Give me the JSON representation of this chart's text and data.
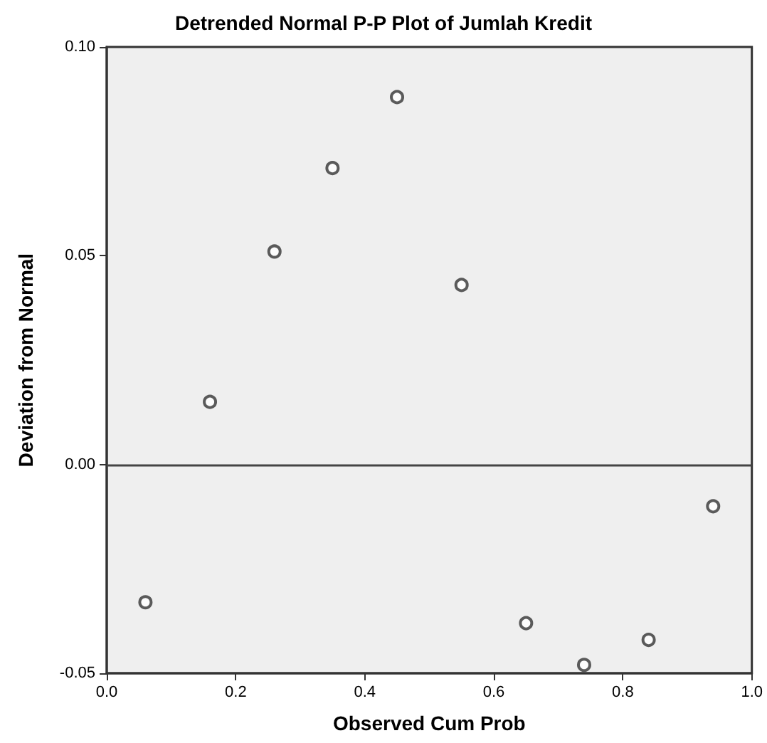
{
  "chart_data": {
    "type": "scatter",
    "title": "Detrended Normal P-P Plot of Jumlah Kredit",
    "xlabel": "Observed Cum Prob",
    "ylabel": "Deviation from Normal",
    "x": [
      0.06,
      0.16,
      0.26,
      0.35,
      0.45,
      0.55,
      0.65,
      0.74,
      0.84,
      0.94
    ],
    "values": [
      -0.033,
      0.015,
      0.051,
      0.071,
      0.088,
      0.043,
      -0.038,
      -0.048,
      -0.042,
      -0.01
    ],
    "color": "#333333",
    "marker": "circle",
    "xlim": [
      0,
      1
    ],
    "xticks": [
      {
        "value": 0,
        "label": "0.0"
      },
      {
        "value": 0.2,
        "label": "0.2"
      },
      {
        "value": 0.4,
        "label": "0.4"
      },
      {
        "value": 0.6,
        "label": "0.6"
      },
      {
        "value": 0.8,
        "label": "0.8"
      },
      {
        "value": 1,
        "label": "1.0"
      }
    ],
    "ylim": [
      -0.05,
      0.1
    ],
    "yticks": [
      {
        "value": -0.05,
        "label": "-0.05"
      },
      {
        "value": 0,
        "label": "0.00"
      },
      {
        "value": 0.05,
        "label": "0.05"
      },
      {
        "value": 0.1,
        "label": "0.10"
      }
    ],
    "ref_lines": [
      {
        "axis": "y",
        "value": 0,
        "color": "#444444"
      }
    ],
    "grid": false
  }
}
